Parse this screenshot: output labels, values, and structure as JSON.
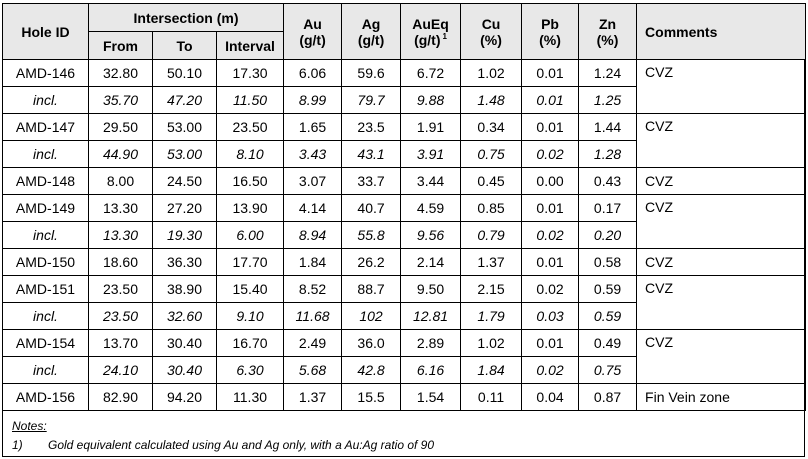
{
  "headers": {
    "hole_id": "Hole ID",
    "intersection": "Intersection (m)",
    "from": "From",
    "to": "To",
    "interval": "Interval",
    "au": "Au",
    "au_unit": "(g/t)",
    "ag": "Ag",
    "ag_unit": "(g/t)",
    "aueq": "AuEq",
    "aueq_unit": "(g/t)",
    "aueq_note": "1",
    "cu": "Cu",
    "cu_unit": "(%)",
    "pb": "Pb",
    "pb_unit": "(%)",
    "zn": "Zn",
    "zn_unit": "(%)",
    "comments": "Comments"
  },
  "groups": [
    {
      "hole": "AMD-146",
      "from": "32.80",
      "to": "50.10",
      "interval": "17.30",
      "au": "6.06",
      "ag": "59.6",
      "aueq": "6.72",
      "cu": "1.02",
      "pb": "0.01",
      "zn": "1.24",
      "comment": "CVZ",
      "incl": {
        "label": "incl.",
        "from": "35.70",
        "to": "47.20",
        "interval": "11.50",
        "au": "8.99",
        "ag": "79.7",
        "aueq": "9.88",
        "cu": "1.48",
        "pb": "0.01",
        "zn": "1.25"
      }
    },
    {
      "hole": "AMD-147",
      "from": "29.50",
      "to": "53.00",
      "interval": "23.50",
      "au": "1.65",
      "ag": "23.5",
      "aueq": "1.91",
      "cu": "0.34",
      "pb": "0.01",
      "zn": "1.44",
      "comment": "CVZ",
      "incl": {
        "label": "incl.",
        "from": "44.90",
        "to": "53.00",
        "interval": "8.10",
        "au": "3.43",
        "ag": "43.1",
        "aueq": "3.91",
        "cu": "0.75",
        "pb": "0.02",
        "zn": "1.28"
      }
    },
    {
      "hole": "AMD-148",
      "from": "8.00",
      "to": "24.50",
      "interval": "16.50",
      "au": "3.07",
      "ag": "33.7",
      "aueq": "3.44",
      "cu": "0.45",
      "pb": "0.00",
      "zn": "0.43",
      "comment": "CVZ"
    },
    {
      "hole": "AMD-149",
      "from": "13.30",
      "to": "27.20",
      "interval": "13.90",
      "au": "4.14",
      "ag": "40.7",
      "aueq": "4.59",
      "cu": "0.85",
      "pb": "0.01",
      "zn": "0.17",
      "comment": "CVZ",
      "incl": {
        "label": "incl.",
        "from": "13.30",
        "to": "19.30",
        "interval": "6.00",
        "au": "8.94",
        "ag": "55.8",
        "aueq": "9.56",
        "cu": "0.79",
        "pb": "0.02",
        "zn": "0.20"
      }
    },
    {
      "hole": "AMD-150",
      "from": "18.60",
      "to": "36.30",
      "interval": "17.70",
      "au": "1.84",
      "ag": "26.2",
      "aueq": "2.14",
      "cu": "1.37",
      "pb": "0.01",
      "zn": "0.58",
      "comment": "CVZ"
    },
    {
      "hole": "AMD-151",
      "from": "23.50",
      "to": "38.90",
      "interval": "15.40",
      "au": "8.52",
      "ag": "88.7",
      "aueq": "9.50",
      "cu": "2.15",
      "pb": "0.02",
      "zn": "0.59",
      "comment": "CVZ",
      "incl": {
        "label": "incl.",
        "from": "23.50",
        "to": "32.60",
        "interval": "9.10",
        "au": "11.68",
        "ag": "102",
        "aueq": "12.81",
        "cu": "1.79",
        "pb": "0.03",
        "zn": "0.59"
      }
    },
    {
      "hole": "AMD-154",
      "from": "13.70",
      "to": "30.40",
      "interval": "16.70",
      "au": "2.49",
      "ag": "36.0",
      "aueq": "2.89",
      "cu": "1.02",
      "pb": "0.01",
      "zn": "0.49",
      "comment": "CVZ",
      "incl": {
        "label": "incl.",
        "from": "24.10",
        "to": "30.40",
        "interval": "6.30",
        "au": "5.68",
        "ag": "42.8",
        "aueq": "6.16",
        "cu": "1.84",
        "pb": "0.02",
        "zn": "0.75"
      }
    },
    {
      "hole": "AMD-156",
      "from": "82.90",
      "to": "94.20",
      "interval": "11.30",
      "au": "1.37",
      "ag": "15.5",
      "aueq": "1.54",
      "cu": "0.11",
      "pb": "0.04",
      "zn": "0.87",
      "comment": "Fin Vein zone"
    }
  ],
  "notes": {
    "heading": "Notes:",
    "items": [
      {
        "num": "1)",
        "text": "Gold equivalent calculated using Au and Ag only, with a Au:Ag ratio of 90"
      }
    ]
  },
  "colors": {
    "header_bg": "#e8e8e8",
    "border": "#000000"
  }
}
